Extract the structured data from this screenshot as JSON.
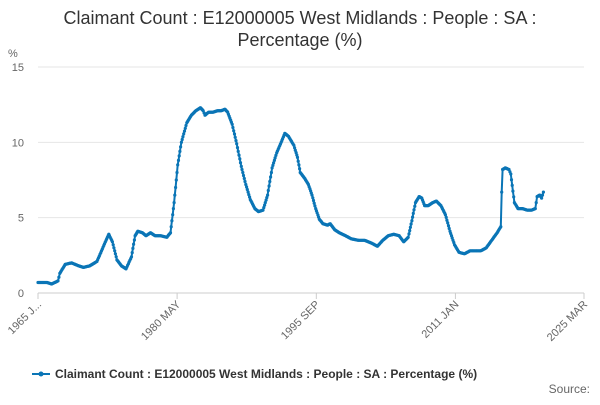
{
  "chart_data": {
    "type": "line",
    "title_line1": "Claimant Count : E12000005 West Midlands : People : SA :",
    "title_line2": "Percentage (%)",
    "ylabel": "%",
    "ylim": [
      0,
      15
    ],
    "yticks": [
      0,
      5,
      10,
      15
    ],
    "xlim": [
      1965.0,
      2025.17
    ],
    "xticks": [
      {
        "value": 1965.0,
        "label": "1965 J..."
      },
      {
        "value": 1980.33,
        "label": "1980 MAY"
      },
      {
        "value": 1995.67,
        "label": "1995 SEP"
      },
      {
        "value": 2011.0,
        "label": "2011 JAN"
      },
      {
        "value": 2025.17,
        "label": "2025 MAR"
      }
    ],
    "grid": true,
    "legend_position": "bottom",
    "color": "#0a75b6",
    "source_text": "Source:",
    "series": [
      {
        "name": "Claimant Count : E12000005 West Midlands : People : SA : Percentage (%)",
        "points": [
          [
            1965.0,
            0.7
          ],
          [
            1966.0,
            0.7
          ],
          [
            1966.5,
            0.6
          ],
          [
            1967.2,
            0.8
          ],
          [
            1967.4,
            1.3
          ],
          [
            1968.0,
            1.9
          ],
          [
            1968.7,
            2.0
          ],
          [
            1969.5,
            1.8
          ],
          [
            1970.0,
            1.7
          ],
          [
            1970.7,
            1.8
          ],
          [
            1971.5,
            2.1
          ],
          [
            1972.5,
            3.5
          ],
          [
            1972.8,
            3.9
          ],
          [
            1973.2,
            3.4
          ],
          [
            1973.7,
            2.2
          ],
          [
            1974.2,
            1.8
          ],
          [
            1974.7,
            1.6
          ],
          [
            1975.3,
            2.4
          ],
          [
            1975.7,
            3.8
          ],
          [
            1976.0,
            4.1
          ],
          [
            1976.5,
            4.0
          ],
          [
            1976.9,
            3.8
          ],
          [
            1977.4,
            4.0
          ],
          [
            1977.9,
            3.8
          ],
          [
            1978.5,
            3.8
          ],
          [
            1979.2,
            3.7
          ],
          [
            1979.6,
            4.0
          ],
          [
            1980.0,
            6.0
          ],
          [
            1980.4,
            8.5
          ],
          [
            1980.8,
            10.0
          ],
          [
            1981.4,
            11.3
          ],
          [
            1981.9,
            11.8
          ],
          [
            1982.4,
            12.1
          ],
          [
            1982.9,
            12.3
          ],
          [
            1983.2,
            12.1
          ],
          [
            1983.4,
            11.8
          ],
          [
            1983.8,
            12.0
          ],
          [
            1984.3,
            12.0
          ],
          [
            1984.8,
            12.1
          ],
          [
            1985.2,
            12.1
          ],
          [
            1985.6,
            12.2
          ],
          [
            1985.9,
            12.0
          ],
          [
            1986.4,
            11.2
          ],
          [
            1986.9,
            9.9
          ],
          [
            1987.4,
            8.4
          ],
          [
            1987.9,
            7.2
          ],
          [
            1988.4,
            6.2
          ],
          [
            1988.9,
            5.6
          ],
          [
            1989.3,
            5.4
          ],
          [
            1989.8,
            5.5
          ],
          [
            1990.3,
            6.5
          ],
          [
            1990.8,
            8.3
          ],
          [
            1991.3,
            9.3
          ],
          [
            1991.8,
            10.0
          ],
          [
            1992.2,
            10.6
          ],
          [
            1992.6,
            10.4
          ],
          [
            1993.2,
            9.8
          ],
          [
            1993.6,
            9.0
          ],
          [
            1993.9,
            8.0
          ],
          [
            1994.4,
            7.6
          ],
          [
            1994.8,
            7.2
          ],
          [
            1995.2,
            6.5
          ],
          [
            1995.6,
            5.6
          ],
          [
            1996.0,
            4.9
          ],
          [
            1996.4,
            4.6
          ],
          [
            1996.9,
            4.5
          ],
          [
            1997.2,
            4.6
          ],
          [
            1997.7,
            4.2
          ],
          [
            1998.2,
            4.0
          ],
          [
            1998.9,
            3.8
          ],
          [
            1999.5,
            3.6
          ],
          [
            2000.3,
            3.5
          ],
          [
            2001.0,
            3.5
          ],
          [
            2001.8,
            3.3
          ],
          [
            2002.4,
            3.1
          ],
          [
            2003.0,
            3.5
          ],
          [
            2003.6,
            3.8
          ],
          [
            2004.2,
            3.9
          ],
          [
            2004.8,
            3.8
          ],
          [
            2005.3,
            3.4
          ],
          [
            2005.8,
            3.7
          ],
          [
            2006.2,
            4.8
          ],
          [
            2006.6,
            6.0
          ],
          [
            2007.0,
            6.4
          ],
          [
            2007.3,
            6.3
          ],
          [
            2007.6,
            5.8
          ],
          [
            2008.0,
            5.8
          ],
          [
            2008.5,
            6.0
          ],
          [
            2008.9,
            6.1
          ],
          [
            2009.4,
            5.8
          ],
          [
            2009.9,
            5.2
          ],
          [
            2010.4,
            4.1
          ],
          [
            2010.9,
            3.2
          ],
          [
            2011.4,
            2.7
          ],
          [
            2012.0,
            2.6
          ],
          [
            2012.6,
            2.8
          ],
          [
            2013.2,
            2.8
          ],
          [
            2013.8,
            2.8
          ],
          [
            2014.4,
            3.0
          ],
          [
            2015.0,
            3.5
          ],
          [
            2015.6,
            4.0
          ],
          [
            2016.0,
            4.4
          ],
          [
            2016.1,
            6.7
          ],
          [
            2016.2,
            8.2
          ],
          [
            2016.5,
            8.3
          ],
          [
            2016.9,
            8.2
          ],
          [
            2017.1,
            7.9
          ],
          [
            2017.5,
            6.0
          ],
          [
            2017.9,
            5.6
          ],
          [
            2018.4,
            5.6
          ],
          [
            2018.9,
            5.5
          ],
          [
            2019.4,
            5.5
          ],
          [
            2019.8,
            5.6
          ],
          [
            2020.0,
            6.4
          ],
          [
            2020.3,
            6.5
          ],
          [
            2020.5,
            6.3
          ],
          [
            2020.7,
            6.7
          ]
        ]
      }
    ]
  }
}
